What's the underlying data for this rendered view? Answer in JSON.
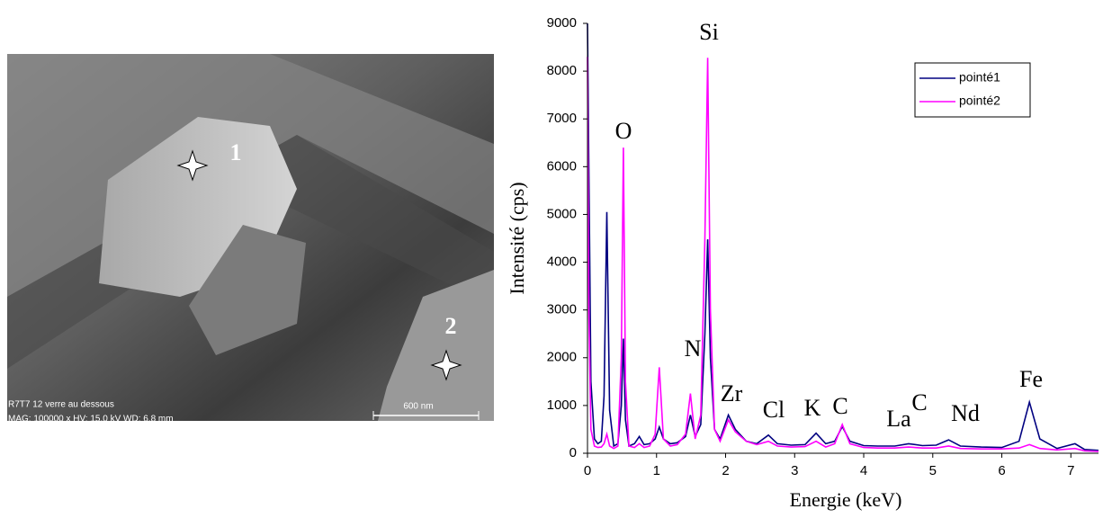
{
  "image": {
    "markers": [
      "1",
      "2"
    ],
    "caption_line1": "R7T7 12  verre au dessous",
    "caption_line2": "MAG: 100000 x  HV: 15,0 kV  WD: 6,8 mm",
    "scale_bar": "600 nm"
  },
  "chart_data": {
    "type": "line",
    "x_label": "Energie (keV)",
    "y_label": "Intensité (cps)",
    "annotations": [
      "Si",
      "O",
      "N",
      "Zr",
      "Cl",
      "K",
      "C",
      "La",
      "C",
      "Nd",
      "Fe"
    ],
    "x": [
      0,
      0.02,
      0.05,
      0.1,
      0.15,
      0.2,
      0.24,
      0.28,
      0.32,
      0.38,
      0.44,
      0.49,
      0.52,
      0.55,
      0.6,
      0.68,
      0.75,
      0.82,
      0.9,
      0.98,
      1.04,
      1.1,
      1.2,
      1.3,
      1.42,
      1.49,
      1.56,
      1.64,
      1.7,
      1.74,
      1.78,
      1.84,
      1.92,
      2.04,
      2.14,
      2.3,
      2.45,
      2.62,
      2.75,
      2.95,
      3.15,
      3.31,
      3.45,
      3.58,
      3.69,
      3.8,
      4.0,
      4.2,
      4.45,
      4.65,
      4.85,
      5.05,
      5.23,
      5.4,
      5.7,
      6.0,
      6.25,
      6.4,
      6.55,
      6.8,
      7.06,
      7.2,
      7.4
    ],
    "series": [
      {
        "name": "pointé1",
        "color": "#000080",
        "values": [
          9000,
          6000,
          1500,
          300,
          200,
          250,
          1200,
          5050,
          900,
          150,
          200,
          1000,
          2400,
          700,
          150,
          200,
          350,
          180,
          200,
          300,
          550,
          300,
          200,
          220,
          350,
          800,
          350,
          600,
          2500,
          4480,
          2000,
          500,
          300,
          800,
          500,
          250,
          200,
          380,
          200,
          170,
          180,
          420,
          200,
          250,
          560,
          250,
          160,
          150,
          150,
          200,
          160,
          170,
          280,
          150,
          130,
          120,
          250,
          1070,
          300,
          100,
          200,
          80,
          60
        ]
      },
      {
        "name": "pointé2",
        "color": "#ff00ff",
        "values": [
          8300,
          3000,
          500,
          150,
          120,
          130,
          200,
          400,
          150,
          100,
          150,
          2000,
          6400,
          1500,
          150,
          120,
          200,
          120,
          150,
          400,
          1800,
          300,
          150,
          180,
          400,
          1250,
          300,
          800,
          4500,
          8280,
          3000,
          500,
          250,
          700,
          450,
          250,
          180,
          250,
          150,
          130,
          140,
          250,
          130,
          200,
          600,
          200,
          120,
          110,
          110,
          130,
          110,
          110,
          150,
          100,
          90,
          90,
          110,
          180,
          100,
          70,
          100,
          50,
          40
        ]
      }
    ],
    "xlim": [
      0,
      7.4
    ],
    "ylim": [
      0,
      9000
    ],
    "xticks": [
      0,
      1,
      2,
      3,
      4,
      5,
      6,
      7
    ],
    "yticks": [
      0,
      1000,
      2000,
      3000,
      4000,
      5000,
      6000,
      7000,
      8000,
      9000
    ],
    "grid": false,
    "legend": "upper right"
  }
}
